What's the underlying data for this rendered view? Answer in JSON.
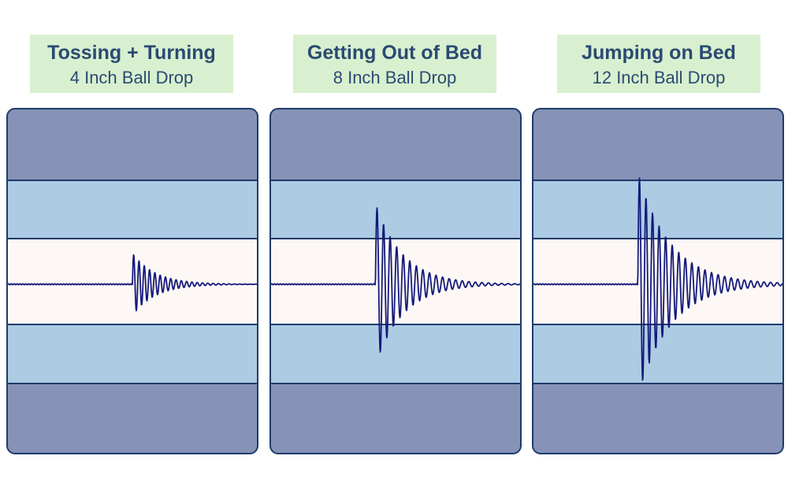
{
  "colors": {
    "outer_band": "#8693b6",
    "inner_band": "#adcbe3",
    "center_band": "#fdf8f6",
    "border": "#1f3b6b",
    "waveform": "#141a7a",
    "label_bg": "#d8f0cf",
    "label_text": "#2a4a73"
  },
  "chart_data": [
    {
      "type": "line",
      "title": "Tossing + Turning",
      "subtitle": "4 Inch Ball Drop",
      "series": [
        {
          "impulse_x": 0.5,
          "amplitude": 0.38,
          "decay": 0.09,
          "period": 0.021
        }
      ]
    },
    {
      "type": "line",
      "title": "Getting Out of Bed",
      "subtitle": "8 Inch Ball Drop",
      "series": [
        {
          "impulse_x": 0.42,
          "amplitude": 0.98,
          "decay": 0.11,
          "period": 0.026
        }
      ]
    },
    {
      "type": "line",
      "title": "Jumping on Bed",
      "subtitle": "12 Inch Ball Drop",
      "series": [
        {
          "impulse_x": 0.42,
          "amplitude": 1.35,
          "decay": 0.13,
          "period": 0.026
        }
      ]
    }
  ]
}
